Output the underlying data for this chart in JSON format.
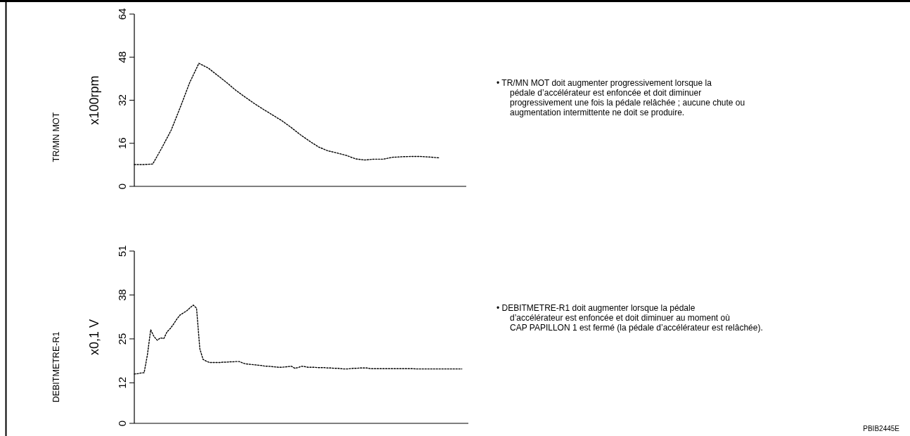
{
  "chart_data": [
    {
      "type": "line",
      "ylabel": "x100rpm",
      "ylim": [
        0,
        64
      ],
      "yticks": [
        0,
        16,
        32,
        48,
        64
      ],
      "line_style": "dotted",
      "grid": false,
      "legend": false,
      "categories": [
        null,
        null,
        null,
        null,
        null,
        null,
        null,
        null,
        null,
        null,
        null,
        null,
        null,
        null,
        null,
        null,
        null,
        null,
        null,
        null,
        null,
        null,
        null,
        null,
        null,
        null,
        null,
        null,
        null,
        null,
        null,
        null,
        null,
        null,
        null,
        null,
        null
      ],
      "series": [
        {
          "color": "#000000",
          "values": [
            8.1,
            8.1,
            8.3,
            14.4,
            20.9,
            29.5,
            38.5,
            45.7,
            44.0,
            41.3,
            38.6,
            35.7,
            33.2,
            30.8,
            28.6,
            26.5,
            24.4,
            21.9,
            19.2,
            16.8,
            14.6,
            13.2,
            12.4,
            11.5,
            10.2,
            9.8,
            10.1,
            10.1,
            10.8,
            11.0,
            11.1,
            11.1,
            10.9,
            10.6,
            null,
            null,
            null
          ]
        }
      ],
      "annotations": [
        "TR/MN MOT",
        "• TR/MN MOT doit augmenter progressivement lorsque la\npédale d’accélérateur est enfoncée et doit diminuer\nprogressivement une fois la pédale relâchée ; aucune chute ou\naugmentation intermittente ne doit se produire."
      ]
    },
    {
      "type": "line",
      "ylabel": "x0,1 V",
      "ylim": [
        0,
        51
      ],
      "yticks": [
        0,
        12,
        25,
        38,
        51
      ],
      "line_style": "dotted",
      "grid": false,
      "legend": false,
      "categories": [
        null,
        null,
        null,
        null,
        null,
        null,
        null,
        null,
        null,
        null,
        null,
        null,
        null,
        null,
        null,
        null,
        null,
        null,
        null,
        null,
        null,
        null,
        null,
        null,
        null,
        null,
        null,
        null,
        null,
        null,
        null,
        null,
        null,
        null,
        null,
        null,
        null,
        null,
        null,
        null,
        null,
        null,
        null,
        null,
        null,
        null,
        null,
        null,
        null,
        null,
        null,
        null,
        null,
        null,
        null,
        null,
        null,
        null,
        null,
        null,
        null,
        null,
        null,
        null,
        null,
        null,
        null,
        null,
        null,
        null,
        null,
        null,
        null,
        null,
        null,
        null,
        null,
        null,
        null,
        null,
        null,
        null,
        null,
        null,
        null,
        null,
        null,
        null,
        null,
        null,
        null,
        null,
        null,
        null,
        null,
        null,
        null,
        null,
        null,
        null,
        null,
        null,
        null
      ],
      "series": [
        {
          "color": "#000000",
          "values": [
            14.6,
            14.7,
            14.9,
            15.0,
            20.3,
            27.7,
            25.7,
            24.6,
            25.3,
            25.1,
            27.1,
            28.1,
            29.4,
            30.9,
            32.1,
            32.7,
            33.3,
            34.2,
            35.0,
            34.1,
            22.1,
            18.9,
            18.4,
            18.0,
            18.0,
            18.0,
            18.0,
            18.1,
            18.1,
            18.2,
            18.2,
            18.3,
            18.3,
            17.9,
            17.6,
            17.5,
            17.4,
            17.3,
            17.2,
            17.1,
            16.9,
            16.9,
            16.8,
            16.7,
            16.6,
            16.6,
            16.7,
            16.8,
            16.9,
            16.3,
            16.5,
            16.9,
            16.8,
            16.6,
            16.6,
            16.6,
            16.5,
            16.5,
            16.5,
            16.4,
            16.4,
            16.3,
            16.3,
            16.2,
            16.1,
            16.1,
            16.2,
            16.3,
            16.3,
            16.4,
            16.4,
            16.4,
            16.2,
            16.2,
            16.2,
            16.2,
            16.2,
            16.2,
            16.2,
            16.2,
            16.2,
            16.2,
            16.2,
            16.2,
            16.2,
            16.2,
            16.1,
            16.1,
            16.1,
            16.1,
            16.1,
            16.1,
            16.1,
            16.1,
            16.1,
            16.1,
            16.1,
            16.1,
            16.1,
            16.1,
            16.1,
            null,
            null
          ]
        }
      ],
      "annotations": [
        "DEBITMETRE-R1",
        "• DEBITMETRE-R1 doit augmenter lorsque la pédale\nd’accélérateur est enfoncée et doit diminuer au moment où\nCAP PAPILLON 1 est fermé (la pédale d’accélérateur est relâchée).",
        "PBIB2445E"
      ]
    }
  ]
}
